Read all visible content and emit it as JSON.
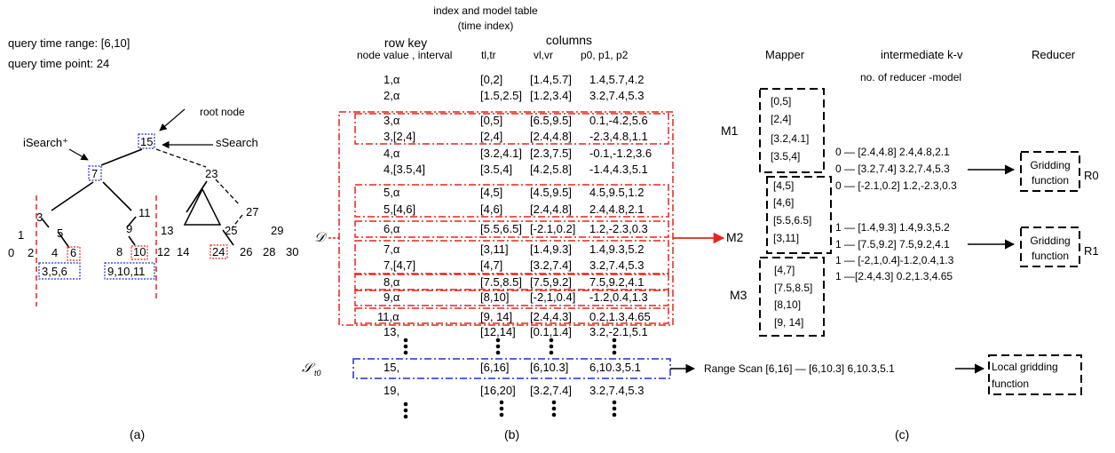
{
  "panel_a": {
    "query_time_range": "query time range:  [6,10]",
    "query_time_point": "query time point:   24",
    "root_node_label": "root node",
    "isearch_label": "iSearch⁺",
    "ssearch_label": "sSearch",
    "tree_nodes": {
      "n15": "15",
      "n7": "7",
      "n23": "23",
      "n3": "3",
      "n11": "11",
      "n27": "27",
      "n5": "5",
      "n9": "9",
      "n13": "13",
      "n25": "25",
      "n29": "29",
      "n1": "1",
      "n0": "0",
      "n2": "2",
      "n4": "4",
      "n6": "6",
      "n8": "8",
      "n10": "10",
      "n12": "12",
      "n14": "14",
      "n24": "24",
      "n26": "26",
      "n28": "28",
      "n30": "30"
    },
    "group_left": "3,5,6",
    "group_right": "9,10,11",
    "caption": "(a)"
  },
  "panel_b": {
    "title_line1": "index and model table",
    "title_line2": "(time index)",
    "row_key_label": "row key",
    "columns_label": "columns",
    "header_node": "node value , interval",
    "header_tl": "tl,tr",
    "header_vl": "vl,vr",
    "header_p": "p0, p1, p2",
    "rows": [
      {
        "key": "1,α",
        "t": "[0,2]",
        "v": "[1.4,5.7]",
        "p": "1.4,5.7,4.2"
      },
      {
        "key": "2,α",
        "t": "[1.5,2.5]",
        "v": "[1.2,3.4]",
        "p": "3.2,7.4,5.3"
      },
      {
        "key": "3,α",
        "t": "[0,5]",
        "v": "[6.5,9.5]",
        "p": "0.1,-4.2,5.6"
      },
      {
        "key": "3,[2,4]",
        "t": "[2,4]",
        "v": "[2.4,4.8]",
        "p": "-2.3,4.8,1.1"
      },
      {
        "key": "4,α",
        "t": "[3.2,4.1]",
        "v": "[2.3,7.5]",
        "p": "-0.1,-1.2,3.6"
      },
      {
        "key": "4,[3.5,4]",
        "t": "[3.5,4]",
        "v": "[4.2,5.8]",
        "p": "-1.4,4.3,5.1"
      },
      {
        "key": "5,α",
        "t": "[4,5]",
        "v": "[4.5,9.5]",
        "p": "4.5,9.5,1.2"
      },
      {
        "key": "5,[4,6]",
        "t": "[4,6]",
        "v": "[2.4,4.8]",
        "p": "2.4,4.8,2.1"
      },
      {
        "key": "6,α",
        "t": "[5.5,6.5]",
        "v": "[-2.1,0.2]",
        "p": "1.2,-2.3,0.3"
      },
      {
        "key": "7,α",
        "t": "[3,11]",
        "v": "[1.4,9.3]",
        "p": "1.4,9.3,5.2"
      },
      {
        "key": "7,[4,7]",
        "t": "[4,7]",
        "v": "[3.2,7.4]",
        "p": "3.2,7.4,5.3"
      },
      {
        "key": "8,α",
        "t": "[7.5,8.5]",
        "v": "[7.5,9.2]",
        "p": "7.5,9.2,4.1"
      },
      {
        "key": "9,α",
        "t": "[8,10]",
        "v": "[-2,1,0.4]",
        "p": "-1.2,0.4,1.3"
      },
      {
        "key": "11,α",
        "t": "[9, 14]",
        "v": "[2.4,4.3]",
        "p": "0.2,1.3,4.65"
      },
      {
        "key": "13,",
        "t": "[12,14]",
        "v": "[0.1,1.4]",
        "p": "3.2,-2.1,5.1"
      },
      {
        "key": "15,",
        "t": "[6,16]",
        "v": "[6,10.3]",
        "p": "6,10.3,5.1"
      },
      {
        "key": "19,",
        "t": "[16,20]",
        "v": "[3.2,7.4]",
        "p": "3.2,7.4,5.3"
      }
    ],
    "d_label": "𝒟",
    "s_label": "𝒮",
    "s_sub": "t0",
    "caption": "(b)"
  },
  "panel_c": {
    "mapper_title": "Mapper",
    "kv_title": "intermediate k-v",
    "kv_sub": "no. of reducer -model",
    "reducer_title": "Reducer",
    "m1": "M1",
    "m2": "M2",
    "m3": "M3",
    "m1_items": [
      "[0,5]",
      "[2,4]",
      "[3.2,4.1]",
      "[3.5,4]"
    ],
    "m2_items": [
      "[4,5]",
      "[4,6]",
      "[5.5,6.5]",
      "[3,11]"
    ],
    "m3_items": [
      "[4,7]",
      "[7.5,8.5]",
      "[8,10]",
      "[9, 14]"
    ],
    "kv_lines": [
      "0 — [2.4,4.8]  2.4,4.8,2.1",
      "0 — [3.2,7.4]  3.2,7.4,5.3",
      "0 — [-2.1,0.2] 1.2,-2.3,0.3",
      "1 — [1.4,9.3]  1.4,9.3,5.2",
      "1 — [7.5,9.2] 7.5,9.2,4.1",
      "1 — [-2,1,0.4]-1.2,0.4,1.3",
      "1 —[2.4,4.3]  0.2,1.3,4.65"
    ],
    "r0_box": [
      "Gridding",
      "function"
    ],
    "r1_box": [
      "Gridding",
      "function"
    ],
    "r0": "R0",
    "r1": "R1",
    "range_scan": "Range Scan  [6,16] — [6,10.3]  6,10.3,5.1",
    "local_box": [
      "Local gridding",
      "function"
    ],
    "caption": "(c)"
  },
  "colors": {
    "red": "#e8241c",
    "blue": "#1c2fd8",
    "black": "#000000"
  }
}
